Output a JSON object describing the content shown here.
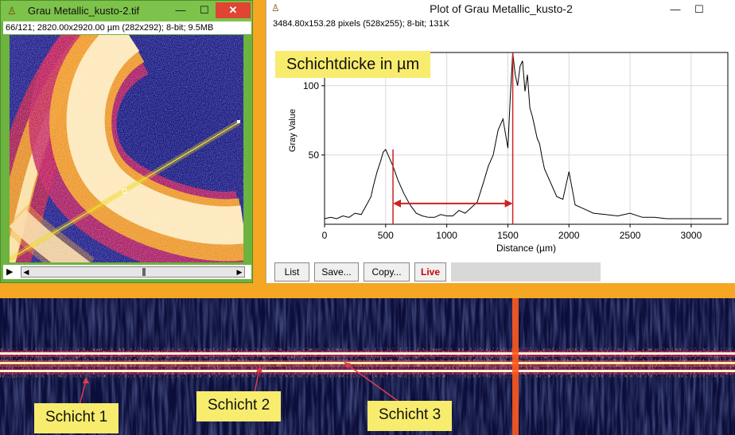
{
  "image_window": {
    "title": "Grau Metallic_kusto-2.tif",
    "info": "66/121; 2820.00x2920.00 µm (282x292); 8-bit; 9.5MB",
    "buttons": {
      "minimize": "—",
      "maximize": "☐",
      "close": "✕"
    },
    "icons": {
      "app": "imagej-microscope-icon",
      "play": "play-icon"
    },
    "slice": {
      "current": 66,
      "total": 121
    }
  },
  "plot_window": {
    "title": "Plot of Grau Metallic_kusto-2",
    "info": "3484.80x153.28 pixels (528x255); 8-bit; 131K",
    "buttons": {
      "minimize": "—",
      "maximize": "☐"
    },
    "annotation": "Schichtdicke in µm",
    "toolbar": {
      "list": "List",
      "save": "Save...",
      "copy": "Copy...",
      "live": "Live"
    },
    "colors": {
      "plot_line": "#000000",
      "marker_line": "#cc2222",
      "highlight": "#f7ec6e"
    }
  },
  "chart_data": {
    "type": "line",
    "xlabel": "Distance (µm)",
    "ylabel": "Gray Value",
    "xticks": [
      0,
      500,
      1000,
      1500,
      2000,
      2500,
      3000
    ],
    "yticks": [
      50,
      100
    ],
    "xlim": [
      0,
      3300
    ],
    "ylim": [
      0,
      124
    ],
    "grid": true,
    "markers": {
      "left_x": 560,
      "right_x": 1540,
      "arrow_y": 15
    },
    "series": [
      {
        "x": [
          0,
          50,
          100,
          150,
          200,
          250,
          300,
          350,
          380,
          400,
          430,
          460,
          480,
          500,
          530,
          560,
          600,
          650,
          700,
          750,
          800,
          850,
          900,
          950,
          1000,
          1050,
          1100,
          1150,
          1200,
          1250,
          1300,
          1340,
          1380,
          1420,
          1460,
          1500,
          1520,
          1540,
          1560,
          1580,
          1600,
          1620,
          1640,
          1660,
          1680,
          1700,
          1720,
          1740,
          1760,
          1780,
          1800,
          1850,
          1900,
          1950,
          2000,
          2050,
          2100,
          2150,
          2200,
          2300,
          2400,
          2500,
          2600,
          2700,
          2800,
          2900,
          3000,
          3100,
          3200,
          3250
        ],
        "y": [
          4,
          5,
          4,
          6,
          5,
          8,
          7,
          15,
          20,
          28,
          38,
          46,
          52,
          54,
          48,
          42,
          32,
          22,
          14,
          8,
          6,
          5,
          5,
          7,
          6,
          6,
          10,
          8,
          12,
          16,
          30,
          42,
          50,
          68,
          76,
          55,
          92,
          124,
          108,
          100,
          114,
          118,
          96,
          108,
          84,
          78,
          70,
          62,
          58,
          48,
          40,
          30,
          20,
          18,
          38,
          14,
          12,
          10,
          8,
          7,
          6,
          8,
          5,
          5,
          4,
          4,
          4,
          4,
          4,
          4
        ]
      }
    ]
  },
  "strip": {
    "labels": [
      "Schicht 1",
      "Schicht 2",
      "Schicht 3"
    ]
  }
}
